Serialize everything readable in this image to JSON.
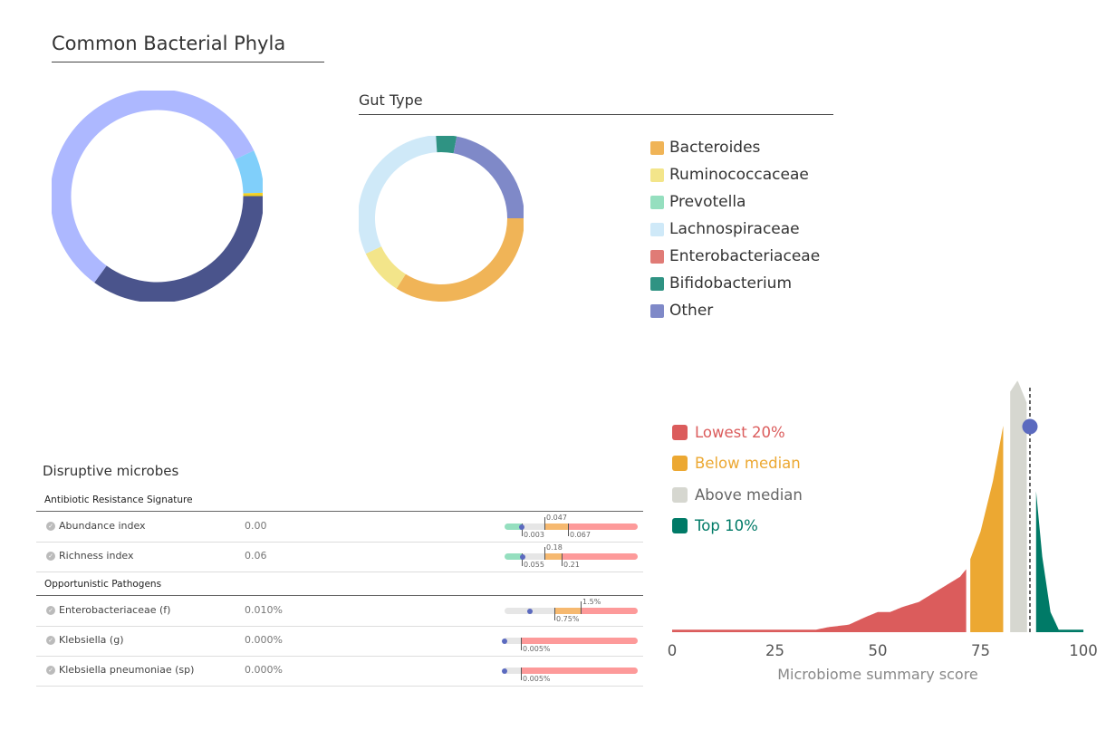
{
  "chart_data": [
    {
      "type": "pie",
      "title": "Common Bacterial Phyla",
      "donut": true,
      "slices": [
        {
          "value": 0.35,
          "color": "#4a548c"
        },
        {
          "value": 0.58,
          "color": "#adb8ff"
        },
        {
          "value": 0.065,
          "color": "#80cffa"
        },
        {
          "value": 0.005,
          "color": "#f2d024"
        }
      ]
    },
    {
      "type": "pie",
      "title": "Gut Type",
      "donut": true,
      "slices": [
        {
          "name": "Bacteroides",
          "value": 0.34,
          "color": "#f0b457"
        },
        {
          "name": "Ruminococcaceae",
          "value": 0.09,
          "color": "#f3e58a"
        },
        {
          "name": "Prevotella",
          "value": 0,
          "color": "#95dfbf"
        },
        {
          "name": "Lachnospiraceae",
          "value": 0.31,
          "color": "#cfe9f8"
        },
        {
          "name": "Enterobacteriaceae",
          "value": 0,
          "color": "#e07b76"
        },
        {
          "name": "Bifidobacterium",
          "value": 0.04,
          "color": "#2f9383"
        },
        {
          "name": "Other",
          "value": 0.22,
          "color": "#7f89c8"
        }
      ]
    },
    {
      "type": "area",
      "xlabel": "Microbiome summary score",
      "xlim": [
        0,
        100
      ],
      "xticks": [
        0,
        25,
        50,
        75,
        100
      ],
      "score": 87,
      "density": [
        [
          0,
          0.01
        ],
        [
          35,
          0.01
        ],
        [
          38,
          0.02
        ],
        [
          43,
          0.03
        ],
        [
          47,
          0.06
        ],
        [
          50,
          0.08
        ],
        [
          53,
          0.08
        ],
        [
          56,
          0.1
        ],
        [
          60,
          0.12
        ],
        [
          63,
          0.15
        ],
        [
          67,
          0.19
        ],
        [
          70,
          0.22
        ],
        [
          71.5,
          0.25
        ],
        [
          72.5,
          0.29
        ],
        [
          75,
          0.4
        ],
        [
          78,
          0.6
        ],
        [
          80.5,
          0.82
        ],
        [
          82,
          0.95
        ],
        [
          84,
          1.0
        ],
        [
          86.5,
          0.9
        ],
        [
          88.5,
          0.56
        ],
        [
          90,
          0.3
        ],
        [
          92,
          0.08
        ],
        [
          94,
          0.01
        ],
        [
          100,
          0.01
        ]
      ],
      "bands": [
        {
          "name": "Lowest 20%",
          "range": [
            0,
            71.5
          ],
          "color": "#db5c5c"
        },
        {
          "name": "Below median",
          "range": [
            72.5,
            80.5
          ],
          "color": "#eca832"
        },
        {
          "name": "Above median",
          "range": [
            82.2,
            86.3
          ],
          "color": "#d6d7d0",
          "text_color": "#666"
        },
        {
          "name": "Top 10%",
          "range": [
            88.5,
            100
          ],
          "color": "#007a67"
        }
      ]
    }
  ],
  "disruptive": {
    "title": "Disruptive microbes",
    "sections": [
      {
        "title": "Antibiotic Resistance Signature",
        "rows": [
          {
            "name": "Abundance index",
            "value": "0.00",
            "labels": [
              "0.003",
              "0.047",
              "0.067"
            ]
          },
          {
            "name": "Richness index",
            "value": "0.06",
            "labels": [
              "0.055",
              "0.18",
              "0.21"
            ]
          }
        ]
      },
      {
        "title": "Opportunistic Pathogens",
        "rows": [
          {
            "name": "Enterobacteriaceae (f)",
            "value": "0.010%",
            "labels": [
              "0.75%",
              "1.5%"
            ]
          },
          {
            "name": "Klebsiella (g)",
            "value": "0.000%",
            "labels": [
              "0.005%"
            ]
          },
          {
            "name": "Klebsiella pneumoniae (sp)",
            "value": "0.000%",
            "labels": [
              "0.005%"
            ]
          }
        ]
      }
    ]
  }
}
